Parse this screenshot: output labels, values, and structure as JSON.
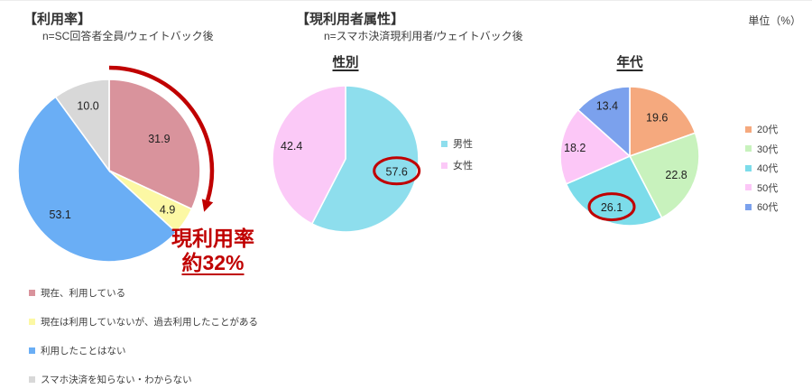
{
  "page": {
    "unit_label": "単位（%）"
  },
  "sections": {
    "usage": {
      "title": "【利用率】",
      "subtitle": "n=SC回答者全員/ウェイトバック後",
      "annotation": {
        "line1": "現利用率",
        "line2": "約32%"
      }
    },
    "attributes": {
      "title": "【現利用者属性】",
      "subtitle": "n=スマホ決済現利用者/ウェイトバック後",
      "gender_chart_title": "性別",
      "age_chart_title": "年代"
    }
  },
  "colors": {
    "accent_red": "#c00000"
  },
  "chart_data": [
    {
      "id": "usage",
      "type": "pie",
      "title": "【利用率】",
      "unit": "%",
      "start_angle_deg": 0,
      "direction": "clockwise",
      "labels": [
        "現在、利用している",
        "現在は利用していないが、過去利用したことがある",
        "利用したことはない",
        "スマホ決済を知らない・わからない"
      ],
      "values": [
        31.9,
        4.9,
        53.1,
        10.0
      ],
      "colors": [
        "#d9939c",
        "#fcf8a4",
        "#6aaef5",
        "#d8d8d8"
      ],
      "legend_position": "bottom-left",
      "has_trend_arrow": true
    },
    {
      "id": "gender",
      "type": "pie",
      "title": "性別",
      "unit": "%",
      "start_angle_deg": 0,
      "direction": "clockwise",
      "labels": [
        "男性",
        "女性"
      ],
      "values": [
        57.6,
        42.4
      ],
      "colors": [
        "#8edeed",
        "#fbc9f7"
      ],
      "legend_position": "right",
      "highlight_index": 0
    },
    {
      "id": "age",
      "type": "pie",
      "title": "年代",
      "unit": "%",
      "start_angle_deg": 0,
      "direction": "clockwise",
      "labels": [
        "20代",
        "30代",
        "40代",
        "50代",
        "60代"
      ],
      "values": [
        19.6,
        22.8,
        26.1,
        18.2,
        13.4
      ],
      "colors": [
        "#f5a97e",
        "#c8f2bd",
        "#7cdcea",
        "#fcc7f7",
        "#7ba1ed"
      ],
      "legend_position": "right",
      "highlight_index": 2
    }
  ]
}
